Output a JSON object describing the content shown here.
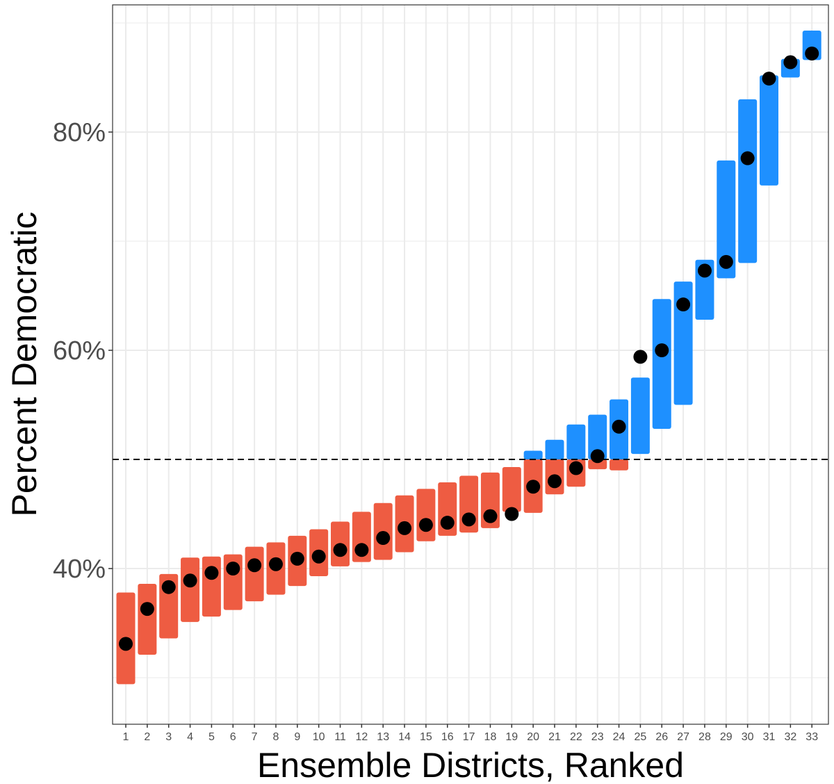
{
  "chart_data": {
    "type": "scatter",
    "xlabel": "Ensemble Districts, Ranked",
    "ylabel": "Percent Democratic",
    "x_categories": [
      "1",
      "2",
      "3",
      "4",
      "5",
      "6",
      "7",
      "8",
      "9",
      "10",
      "11",
      "12",
      "13",
      "14",
      "15",
      "16",
      "17",
      "18",
      "19",
      "20",
      "21",
      "22",
      "23",
      "24",
      "25",
      "26",
      "27",
      "28",
      "29",
      "30",
      "31",
      "32",
      "33"
    ],
    "y_ticks": [
      0.4,
      0.6,
      0.8
    ],
    "y_tick_labels": [
      "40%",
      "60%",
      "80%"
    ],
    "ylim": [
      0.27,
      0.93
    ],
    "threshold": 0.5,
    "threshold_style": "dashed",
    "grid": true,
    "colors": {
      "republican": "#ee5c42",
      "democratic": "#1e90ff",
      "enacted": "#000000",
      "grid": "#ebebeb",
      "border": "#333333"
    },
    "series": [
      {
        "values": [
          0.331,
          0.363,
          0.383,
          0.389,
          0.396,
          0.4,
          0.403,
          0.404,
          0.409,
          0.411,
          0.417,
          0.417,
          0.428,
          0.437,
          0.44,
          0.442,
          0.445,
          0.448,
          0.45,
          0.475,
          0.48,
          0.492,
          0.503,
          0.53,
          0.594,
          0.6,
          0.642,
          0.673,
          0.681,
          0.776,
          0.849,
          0.864,
          0.872
        ]
      }
    ],
    "ensemble_ranges": [
      {
        "district": 1,
        "low": 0.294,
        "high": 0.378
      },
      {
        "district": 2,
        "low": 0.321,
        "high": 0.386
      },
      {
        "district": 3,
        "low": 0.336,
        "high": 0.395
      },
      {
        "district": 4,
        "low": 0.351,
        "high": 0.41
      },
      {
        "district": 5,
        "low": 0.356,
        "high": 0.411
      },
      {
        "district": 6,
        "low": 0.362,
        "high": 0.413
      },
      {
        "district": 7,
        "low": 0.37,
        "high": 0.42
      },
      {
        "district": 8,
        "low": 0.376,
        "high": 0.424
      },
      {
        "district": 9,
        "low": 0.384,
        "high": 0.43
      },
      {
        "district": 10,
        "low": 0.393,
        "high": 0.436
      },
      {
        "district": 11,
        "low": 0.402,
        "high": 0.443
      },
      {
        "district": 12,
        "low": 0.406,
        "high": 0.452
      },
      {
        "district": 13,
        "low": 0.408,
        "high": 0.46
      },
      {
        "district": 14,
        "low": 0.415,
        "high": 0.467
      },
      {
        "district": 15,
        "low": 0.425,
        "high": 0.473
      },
      {
        "district": 16,
        "low": 0.43,
        "high": 0.479
      },
      {
        "district": 17,
        "low": 0.433,
        "high": 0.485
      },
      {
        "district": 18,
        "low": 0.437,
        "high": 0.488
      },
      {
        "district": 19,
        "low": 0.452,
        "high": 0.493
      },
      {
        "district": 20,
        "low": 0.451,
        "high": 0.508
      },
      {
        "district": 21,
        "low": 0.468,
        "high": 0.518
      },
      {
        "district": 22,
        "low": 0.475,
        "high": 0.532
      },
      {
        "district": 23,
        "low": 0.491,
        "high": 0.541
      },
      {
        "district": 24,
        "low": 0.49,
        "high": 0.555
      },
      {
        "district": 25,
        "low": 0.505,
        "high": 0.575
      },
      {
        "district": 26,
        "low": 0.528,
        "high": 0.647
      },
      {
        "district": 27,
        "low": 0.55,
        "high": 0.663
      },
      {
        "district": 28,
        "low": 0.628,
        "high": 0.683
      },
      {
        "district": 29,
        "low": 0.666,
        "high": 0.774
      },
      {
        "district": 30,
        "low": 0.68,
        "high": 0.83
      },
      {
        "district": 31,
        "low": 0.751,
        "high": 0.852
      },
      {
        "district": 32,
        "low": 0.85,
        "high": 0.867
      },
      {
        "district": 33,
        "low": 0.866,
        "high": 0.893
      }
    ]
  }
}
